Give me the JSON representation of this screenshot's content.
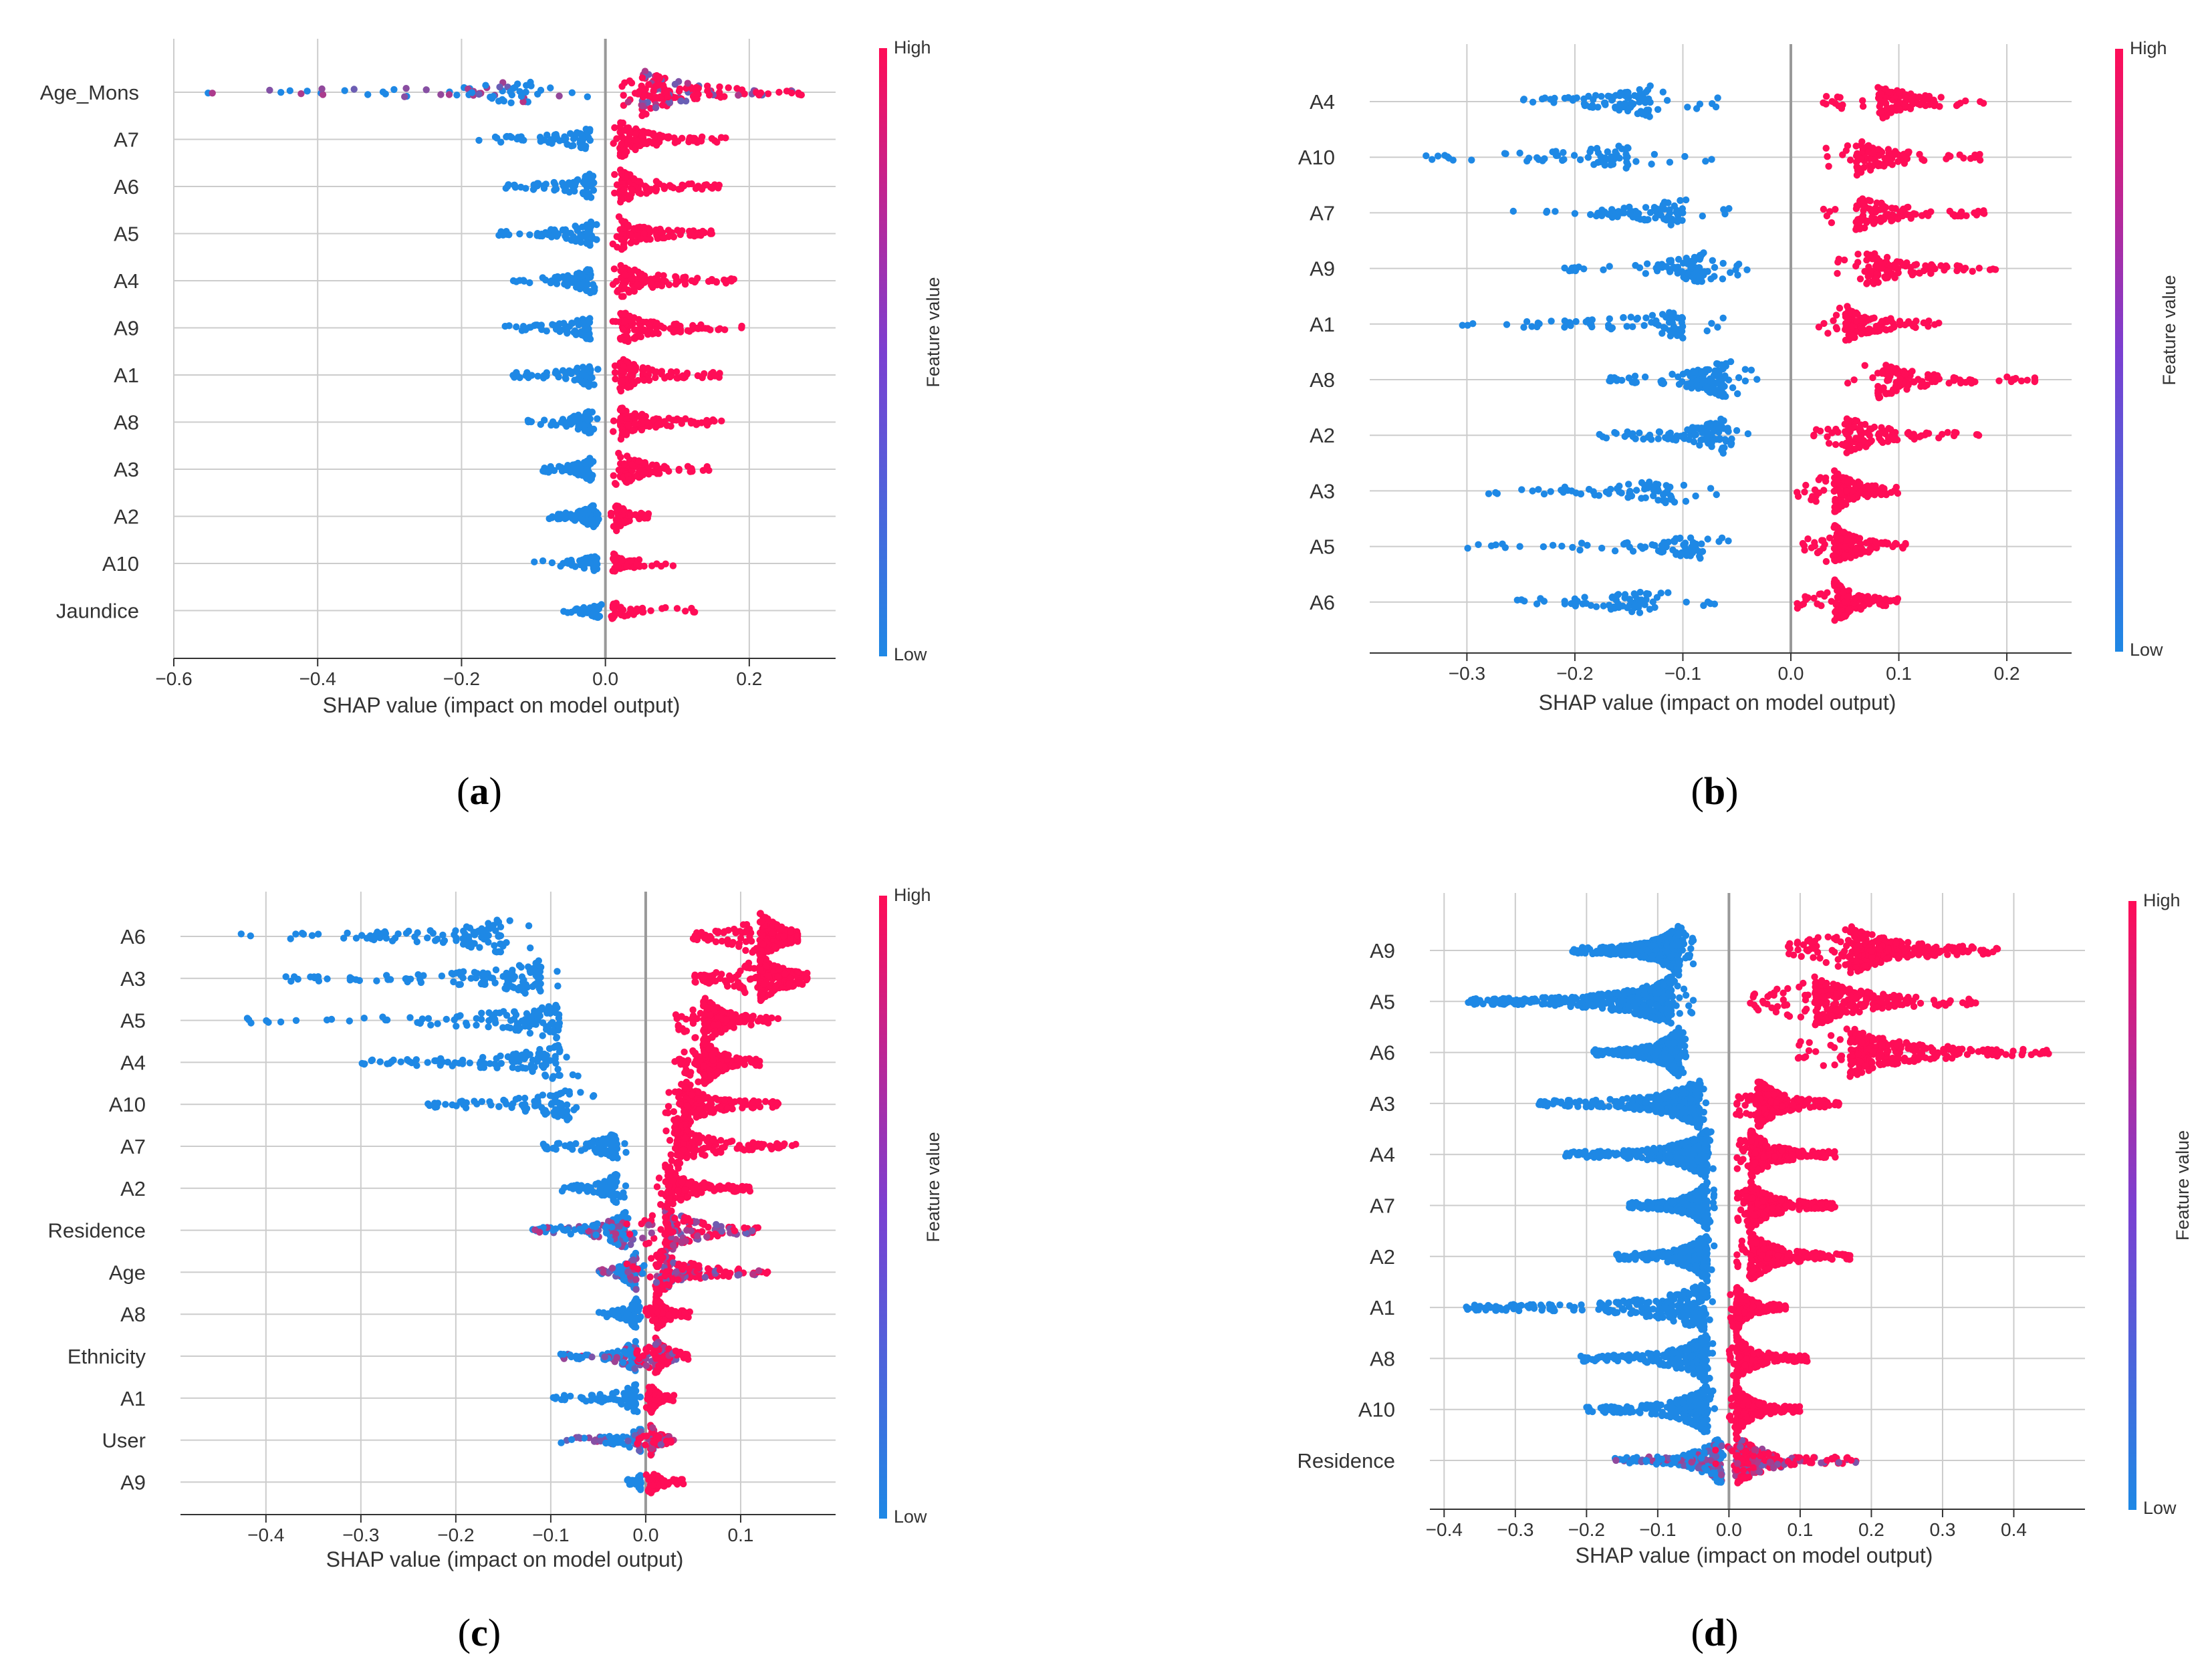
{
  "colors": {
    "low": "#1e88e5",
    "mid": "#7b3fd1",
    "high": "#ff0d57",
    "grid": "#cccccc",
    "zero_line": "#999999",
    "text": "#333333"
  },
  "chart_data": [
    {
      "type": "scatter",
      "subtype": "shap-beeswarm",
      "caption_letter": "a",
      "features": [
        "Age_Mons",
        "A7",
        "A6",
        "A5",
        "A4",
        "A9",
        "A1",
        "A8",
        "A3",
        "A2",
        "A10",
        "Jaundice"
      ],
      "xlabel": "SHAP value (impact on model output)",
      "xticks": [
        -0.6,
        -0.4,
        -0.2,
        0.0,
        0.2
      ],
      "xtick_labels": [
        "−0.6",
        "−0.4",
        "−0.2",
        "0.0",
        "0.2"
      ],
      "xlim": [
        -0.6,
        0.32
      ],
      "colorbar": {
        "label": "Feature value",
        "high": "High",
        "low": "Low"
      },
      "series": [
        {
          "feature": "Age_Mons",
          "low_range": [
            -0.56,
            -0.02
          ],
          "high_range": [
            0.02,
            0.28
          ],
          "low_center": -0.1,
          "high_center": 0.05,
          "mixed": true,
          "low_density": 70,
          "high_density": 160
        },
        {
          "feature": "A7",
          "low_range": [
            -0.2,
            -0.01
          ],
          "high_range": [
            0.01,
            0.17
          ],
          "low_center": -0.02,
          "high_center": 0.02,
          "low_density": 60,
          "high_density": 110
        },
        {
          "feature": "A6",
          "low_range": [
            -0.14,
            -0.01
          ],
          "high_range": [
            0.01,
            0.16
          ],
          "low_center": -0.02,
          "high_center": 0.02,
          "low_density": 70,
          "high_density": 100
        },
        {
          "feature": "A5",
          "low_range": [
            -0.15,
            -0.01
          ],
          "high_range": [
            0.01,
            0.15
          ],
          "low_center": -0.02,
          "high_center": 0.02,
          "low_density": 70,
          "high_density": 100
        },
        {
          "feature": "A4",
          "low_range": [
            -0.13,
            -0.01
          ],
          "high_range": [
            0.01,
            0.18
          ],
          "low_center": -0.02,
          "high_center": 0.02,
          "low_density": 70,
          "high_density": 100
        },
        {
          "feature": "A9",
          "low_range": [
            -0.14,
            -0.01
          ],
          "high_range": [
            0.01,
            0.19
          ],
          "low_center": -0.02,
          "high_center": 0.02,
          "low_density": 70,
          "high_density": 100
        },
        {
          "feature": "A1",
          "low_range": [
            -0.13,
            -0.01
          ],
          "high_range": [
            0.01,
            0.16
          ],
          "low_center": -0.02,
          "high_center": 0.02,
          "low_density": 70,
          "high_density": 100
        },
        {
          "feature": "A8",
          "low_range": [
            -0.11,
            -0.01
          ],
          "high_range": [
            0.01,
            0.17
          ],
          "low_center": -0.02,
          "high_center": 0.02,
          "low_density": 70,
          "high_density": 100
        },
        {
          "feature": "A3",
          "low_range": [
            -0.09,
            -0.01
          ],
          "high_range": [
            0.01,
            0.15
          ],
          "low_center": -0.02,
          "high_center": 0.02,
          "low_density": 70,
          "high_density": 100
        },
        {
          "feature": "A2",
          "low_range": [
            -0.08,
            -0.005
          ],
          "high_range": [
            0.005,
            0.06
          ],
          "low_center": -0.015,
          "high_center": 0.015,
          "low_density": 70,
          "high_density": 80
        },
        {
          "feature": "A10",
          "low_range": [
            -0.11,
            -0.005
          ],
          "high_range": [
            0.005,
            0.1
          ],
          "low_center": -0.01,
          "high_center": 0.01,
          "low_density": 40,
          "high_density": 50
        },
        {
          "feature": "Jaundice",
          "low_range": [
            -0.06,
            -0.005
          ],
          "high_range": [
            0.005,
            0.13
          ],
          "low_center": -0.01,
          "high_center": 0.01,
          "low_density": 40,
          "high_density": 40
        }
      ]
    },
    {
      "type": "scatter",
      "subtype": "shap-beeswarm",
      "caption_letter": "b",
      "features": [
        "A4",
        "A10",
        "A7",
        "A9",
        "A1",
        "A8",
        "A2",
        "A3",
        "A5",
        "A6"
      ],
      "xlabel": "SHAP value (impact on model output)",
      "xticks": [
        -0.3,
        -0.2,
        -0.1,
        0.0,
        0.1,
        0.2
      ],
      "xtick_labels": [
        "−0.3",
        "−0.2",
        "−0.1",
        "0.0",
        "0.1",
        "0.2"
      ],
      "xlim": [
        -0.39,
        0.26
      ],
      "colorbar": {
        "label": "Feature value",
        "high": "High",
        "low": "Low"
      },
      "series": [
        {
          "feature": "A4",
          "low_range": [
            -0.25,
            -0.06
          ],
          "high_range": [
            0.03,
            0.18
          ],
          "low_center": -0.13,
          "high_center": 0.08,
          "low_density": 90,
          "high_density": 110
        },
        {
          "feature": "A10",
          "low_range": [
            -0.36,
            -0.07
          ],
          "high_range": [
            0.03,
            0.18
          ],
          "low_center": -0.15,
          "high_center": 0.06,
          "low_density": 70,
          "high_density": 110
        },
        {
          "feature": "A7",
          "low_range": [
            -0.27,
            -0.05
          ],
          "high_range": [
            0.03,
            0.18
          ],
          "low_center": -0.1,
          "high_center": 0.06,
          "low_density": 80,
          "high_density": 110
        },
        {
          "feature": "A9",
          "low_range": [
            -0.21,
            -0.04
          ],
          "high_range": [
            0.04,
            0.19
          ],
          "low_center": -0.08,
          "high_center": 0.07,
          "low_density": 90,
          "high_density": 110
        },
        {
          "feature": "A1",
          "low_range": [
            -0.31,
            -0.06
          ],
          "high_range": [
            0.02,
            0.14
          ],
          "low_center": -0.1,
          "high_center": 0.05,
          "low_density": 80,
          "high_density": 110
        },
        {
          "feature": "A8",
          "low_range": [
            -0.17,
            -0.03
          ],
          "high_range": [
            0.05,
            0.23
          ],
          "low_center": -0.06,
          "high_center": 0.08,
          "low_density": 120,
          "high_density": 110
        },
        {
          "feature": "A2",
          "low_range": [
            -0.18,
            -0.03
          ],
          "high_range": [
            0.02,
            0.18
          ],
          "low_center": -0.06,
          "high_center": 0.05,
          "low_density": 110,
          "high_density": 110
        },
        {
          "feature": "A3",
          "low_range": [
            -0.28,
            -0.06
          ],
          "high_range": [
            0.005,
            0.1
          ],
          "low_center": -0.11,
          "high_center": 0.04,
          "low_density": 70,
          "high_density": 140
        },
        {
          "feature": "A5",
          "low_range": [
            -0.3,
            -0.05
          ],
          "high_range": [
            0.01,
            0.11
          ],
          "low_center": -0.08,
          "high_center": 0.04,
          "low_density": 70,
          "high_density": 130
        },
        {
          "feature": "A6",
          "low_range": [
            -0.26,
            -0.05
          ],
          "high_range": [
            0.005,
            0.1
          ],
          "low_center": -0.13,
          "high_center": 0.04,
          "low_density": 70,
          "high_density": 140
        }
      ]
    },
    {
      "type": "scatter",
      "subtype": "shap-beeswarm",
      "caption_letter": "c",
      "features": [
        "A6",
        "A3",
        "A5",
        "A4",
        "A10",
        "A7",
        "A2",
        "Residence",
        "Age",
        "A8",
        "Ethnicity",
        "A1",
        "User",
        "A9"
      ],
      "xlabel": "SHAP value (impact on model output)",
      "xticks": [
        -0.4,
        -0.3,
        -0.2,
        -0.1,
        0.0,
        0.1
      ],
      "xtick_labels": [
        "−0.4",
        "−0.3",
        "−0.2",
        "−0.1",
        "0.0",
        "0.1"
      ],
      "xlim": [
        -0.49,
        0.2
      ],
      "colorbar": {
        "label": "Feature value",
        "high": "High",
        "low": "Low"
      },
      "series": [
        {
          "feature": "A6",
          "low_range": [
            -0.44,
            -0.12
          ],
          "high_range": [
            0.05,
            0.16
          ],
          "low_center": -0.15,
          "high_center": 0.12,
          "low_density": 100,
          "high_density": 220
        },
        {
          "feature": "A3",
          "low_range": [
            -0.38,
            -0.09
          ],
          "high_range": [
            0.05,
            0.17
          ],
          "low_center": -0.11,
          "high_center": 0.12,
          "low_density": 110,
          "high_density": 220
        },
        {
          "feature": "A5",
          "low_range": [
            -0.43,
            -0.09
          ],
          "high_range": [
            0.03,
            0.14
          ],
          "low_center": -0.09,
          "high_center": 0.06,
          "low_density": 110,
          "high_density": 200
        },
        {
          "feature": "A4",
          "low_range": [
            -0.3,
            -0.07
          ],
          "high_range": [
            0.03,
            0.12
          ],
          "low_center": -0.09,
          "high_center": 0.06,
          "low_density": 110,
          "high_density": 200
        },
        {
          "feature": "A10",
          "low_range": [
            -0.23,
            -0.04
          ],
          "high_range": [
            0.02,
            0.14
          ],
          "low_center": -0.08,
          "high_center": 0.04,
          "low_density": 100,
          "high_density": 170
        },
        {
          "feature": "A7",
          "low_range": [
            -0.11,
            -0.02
          ],
          "high_range": [
            0.02,
            0.16
          ],
          "low_center": -0.03,
          "high_center": 0.03,
          "low_density": 90,
          "high_density": 150
        },
        {
          "feature": "A2",
          "low_range": [
            -0.09,
            -0.02
          ],
          "high_range": [
            0.01,
            0.11
          ],
          "low_center": -0.03,
          "high_center": 0.02,
          "low_density": 90,
          "high_density": 150
        },
        {
          "feature": "Residence",
          "low_range": [
            -0.12,
            -0.01
          ],
          "high_range": [
            -0.02,
            0.12
          ],
          "low_center": -0.02,
          "high_center": 0.02,
          "mixed": true,
          "low_density": 120,
          "high_density": 160
        },
        {
          "feature": "Age",
          "low_range": [
            -0.05,
            0.0
          ],
          "high_range": [
            -0.02,
            0.14
          ],
          "low_center": -0.01,
          "high_center": 0.01,
          "mixed": true,
          "low_density": 120,
          "high_density": 150
        },
        {
          "feature": "A8",
          "low_range": [
            -0.05,
            -0.005
          ],
          "high_range": [
            0.0,
            0.05
          ],
          "low_center": -0.01,
          "high_center": 0.01,
          "low_density": 90,
          "high_density": 110
        },
        {
          "feature": "Ethnicity",
          "low_range": [
            -0.09,
            -0.005
          ],
          "high_range": [
            -0.01,
            0.05
          ],
          "low_center": -0.01,
          "high_center": 0.01,
          "mixed": true,
          "low_density": 90,
          "high_density": 110
        },
        {
          "feature": "A1",
          "low_range": [
            -0.1,
            -0.005
          ],
          "high_range": [
            0.0,
            0.03
          ],
          "low_center": -0.01,
          "high_center": 0.005,
          "low_density": 80,
          "high_density": 90
        },
        {
          "feature": "User",
          "low_range": [
            -0.09,
            -0.005
          ],
          "high_range": [
            -0.01,
            0.03
          ],
          "low_center": -0.005,
          "high_center": 0.005,
          "mixed": true,
          "low_density": 60,
          "high_density": 90
        },
        {
          "feature": "A9",
          "low_range": [
            -0.02,
            -0.005
          ],
          "high_range": [
            0.0,
            0.04
          ],
          "low_center": -0.005,
          "high_center": 0.005,
          "low_density": 40,
          "high_density": 60
        }
      ]
    },
    {
      "type": "scatter",
      "subtype": "shap-beeswarm",
      "caption_letter": "d",
      "features": [
        "A9",
        "A5",
        "A6",
        "A3",
        "A4",
        "A7",
        "A2",
        "A1",
        "A8",
        "A10",
        "Residence"
      ],
      "xlabel": "SHAP value (impact on model output)",
      "xticks": [
        -0.4,
        -0.3,
        -0.2,
        -0.1,
        0.0,
        0.1,
        0.2,
        0.3,
        0.4
      ],
      "xtick_labels": [
        "−0.4",
        "−0.3",
        "−0.2",
        "−0.1",
        "0.0",
        "0.1",
        "0.2",
        "0.3",
        "0.4"
      ],
      "xlim": [
        -0.42,
        0.5
      ],
      "colorbar": {
        "label": "Feature value",
        "high": "High",
        "low": "Low"
      },
      "series": [
        {
          "feature": "A9",
          "low_range": [
            -0.22,
            -0.05
          ],
          "high_range": [
            0.08,
            0.38
          ],
          "low_center": -0.07,
          "high_center": 0.17,
          "low_density": 400,
          "high_density": 320
        },
        {
          "feature": "A5",
          "low_range": [
            -0.37,
            -0.05
          ],
          "high_range": [
            0.03,
            0.35
          ],
          "low_center": -0.08,
          "high_center": 0.12,
          "low_density": 420,
          "high_density": 260
        },
        {
          "feature": "A6",
          "low_range": [
            -0.19,
            -0.06
          ],
          "high_range": [
            0.09,
            0.45
          ],
          "low_center": -0.07,
          "high_center": 0.17,
          "low_density": 420,
          "high_density": 280
        },
        {
          "feature": "A3",
          "low_range": [
            -0.27,
            -0.03
          ],
          "high_range": [
            0.01,
            0.16
          ],
          "low_center": -0.04,
          "high_center": 0.04,
          "low_density": 320,
          "high_density": 260
        },
        {
          "feature": "A4",
          "low_range": [
            -0.23,
            -0.02
          ],
          "high_range": [
            0.01,
            0.15
          ],
          "low_center": -0.03,
          "high_center": 0.03,
          "low_density": 320,
          "high_density": 260
        },
        {
          "feature": "A7",
          "low_range": [
            -0.14,
            -0.02
          ],
          "high_range": [
            0.01,
            0.15
          ],
          "low_center": -0.03,
          "high_center": 0.03,
          "low_density": 280,
          "high_density": 260
        },
        {
          "feature": "A2",
          "low_range": [
            -0.16,
            -0.02
          ],
          "high_range": [
            0.01,
            0.17
          ],
          "low_center": -0.03,
          "high_center": 0.03,
          "low_density": 300,
          "high_density": 260
        },
        {
          "feature": "A1",
          "low_range": [
            -0.37,
            -0.02
          ],
          "high_range": [
            0.0,
            0.08
          ],
          "low_center": -0.03,
          "high_center": 0.01,
          "low_density": 280,
          "high_density": 180
        },
        {
          "feature": "A8",
          "low_range": [
            -0.21,
            -0.02
          ],
          "high_range": [
            0.0,
            0.11
          ],
          "low_center": -0.03,
          "high_center": 0.01,
          "low_density": 260,
          "high_density": 200
        },
        {
          "feature": "A10",
          "low_range": [
            -0.2,
            -0.02
          ],
          "high_range": [
            0.0,
            0.1
          ],
          "low_center": -0.03,
          "high_center": 0.01,
          "low_density": 260,
          "high_density": 200
        },
        {
          "feature": "Residence",
          "low_range": [
            -0.16,
            0.0
          ],
          "high_range": [
            -0.02,
            0.18
          ],
          "low_center": -0.01,
          "high_center": 0.01,
          "mixed": true,
          "low_density": 200,
          "high_density": 200
        }
      ]
    }
  ]
}
